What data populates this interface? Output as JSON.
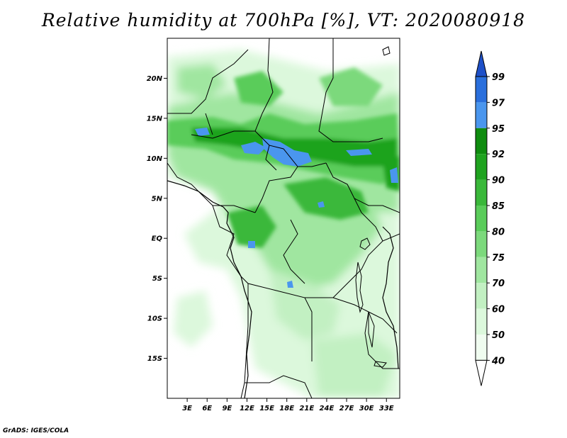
{
  "title": "Relative humidity at 700hPa [%], VT: 2020080918",
  "credit": "GrADS: IGES/COLA",
  "map": {
    "lat_labels": [
      "20N",
      "15N",
      "10N",
      "5N",
      "EQ",
      "5S",
      "10S",
      "15S"
    ],
    "lat_values": [
      20,
      15,
      10,
      5,
      0,
      -5,
      -10,
      -15
    ],
    "lon_labels": [
      "3E",
      "6E",
      "9E",
      "12E",
      "15E",
      "18E",
      "21E",
      "24E",
      "27E",
      "30E",
      "33E"
    ],
    "lon_values": [
      3,
      6,
      9,
      12,
      15,
      18,
      21,
      24,
      27,
      30,
      33
    ],
    "lat_range": [
      -20,
      25
    ],
    "lon_range": [
      0,
      35
    ]
  },
  "colorbar": {
    "levels": [
      "99",
      "97",
      "95",
      "92",
      "90",
      "85",
      "80",
      "75",
      "70",
      "60",
      "50",
      "40"
    ],
    "colors": [
      "#1e50c8",
      "#2a6fdc",
      "#4a96ee",
      "#0f8c0f",
      "#1fa31f",
      "#3ab83a",
      "#5acc5a",
      "#7cd97c",
      "#a0e6a0",
      "#c2f0c2",
      "#dcf8dc",
      "#f0fcf0"
    ]
  }
}
